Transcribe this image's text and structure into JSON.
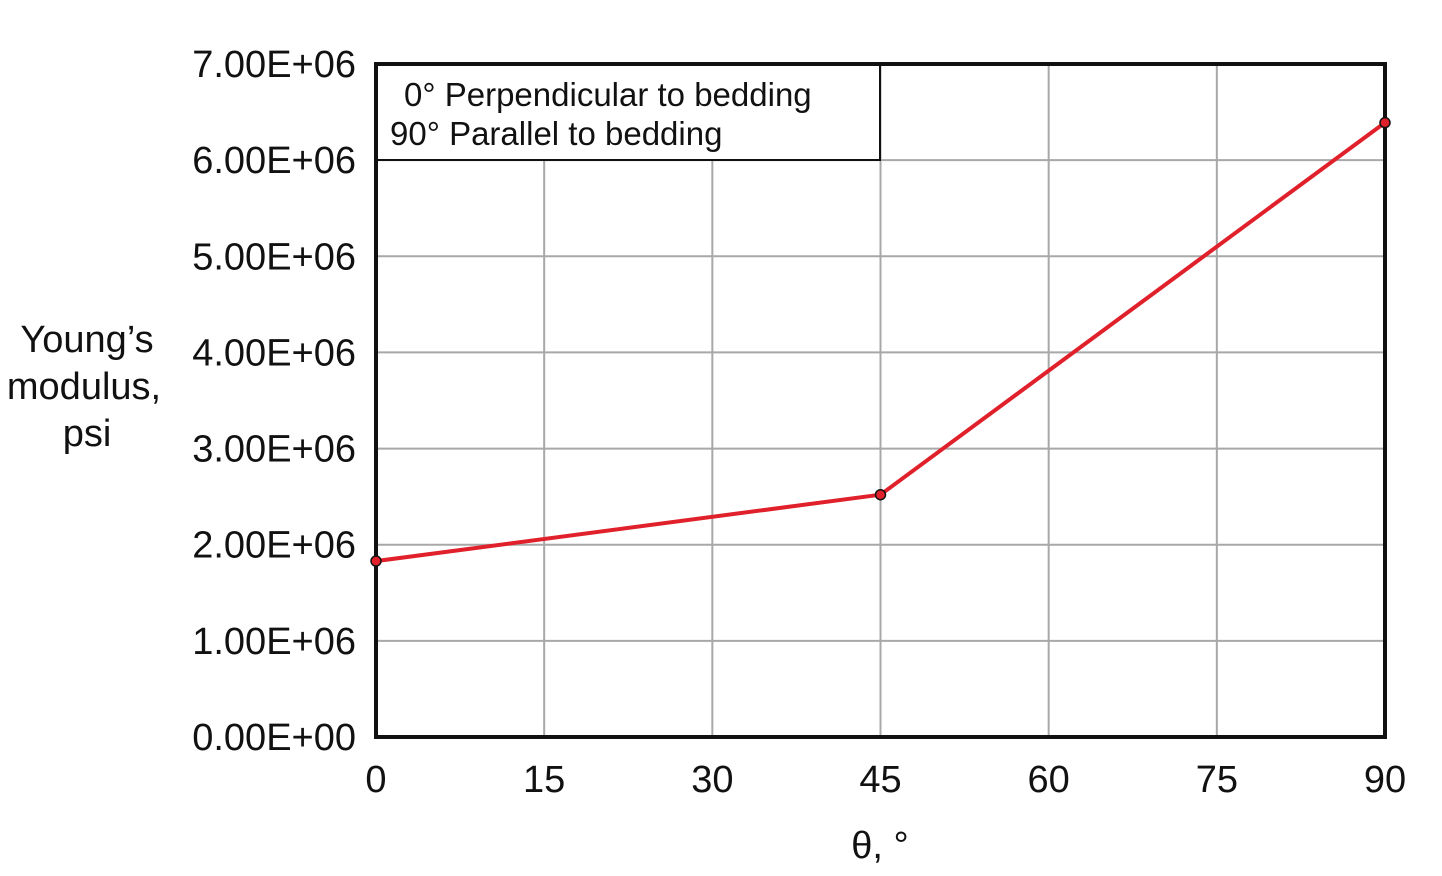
{
  "chart_data": {
    "type": "line",
    "title": "",
    "xlabel": "θ, °",
    "ylabel_lines": [
      "Young’s",
      "modulus,",
      "psi"
    ],
    "xlim": [
      0,
      90
    ],
    "ylim": [
      0,
      7000000
    ],
    "x_ticks": [
      "0",
      "15",
      "30",
      "45",
      "60",
      "75",
      "90"
    ],
    "y_ticks": [
      "0.00E+00",
      "1.00E+06",
      "2.00E+06",
      "3.00E+06",
      "4.00E+06",
      "5.00E+06",
      "6.00E+06",
      "7.00E+06"
    ],
    "grid": true,
    "annotation": {
      "lines": [
        "0° Perpendicular to bedding",
        "90° Parallel to bedding"
      ],
      "placement": "top-left"
    },
    "series": [
      {
        "color": "#e0202a",
        "points": [
          {
            "x": 0,
            "y": 1830000
          },
          {
            "x": 45,
            "y": 2520000
          },
          {
            "x": 90,
            "y": 6390000
          }
        ]
      }
    ]
  }
}
